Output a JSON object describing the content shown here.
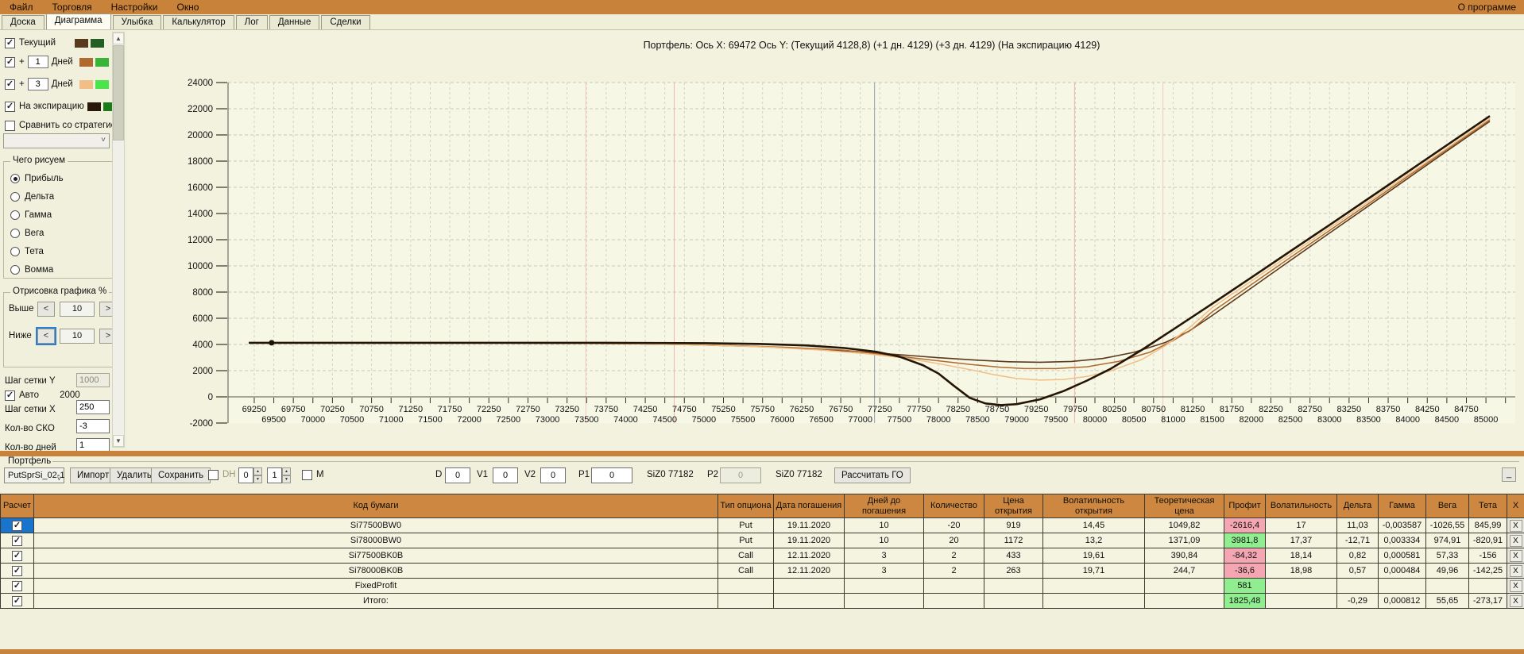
{
  "menu": {
    "items": [
      "Файл",
      "Торговля",
      "Настройки",
      "Окно"
    ],
    "right": "О программе"
  },
  "tabs": {
    "items": [
      "Доска",
      "Диаграмма",
      "Улыбка",
      "Калькулятор",
      "Лог",
      "Данные",
      "Сделки"
    ],
    "active": "Диаграмма"
  },
  "sidebar": {
    "curves": [
      {
        "label": "Текущий",
        "checked": true,
        "colors": [
          "#5a3a1c",
          "#235f23"
        ]
      },
      {
        "label": "Дней",
        "prefix": "+",
        "days": "1",
        "checked": true,
        "colors": [
          "#b06a2e",
          "#38b438"
        ]
      },
      {
        "label": "Дней",
        "prefix": "+",
        "days": "3",
        "checked": true,
        "colors": [
          "#f0be86",
          "#4ce44c"
        ]
      },
      {
        "label": "На экспирацию",
        "checked": true,
        "colors": [
          "#2a1808",
          "#1b7b1b"
        ]
      }
    ],
    "compare": {
      "label": "Сравнить со стратегией",
      "checked": false,
      "dropdown_value": ""
    },
    "draw_group": {
      "title": "Чего рисуем",
      "options": [
        "Прибыль",
        "Дельта",
        "Гамма",
        "Вега",
        "Тета",
        "Вомма"
      ],
      "selected": "Прибыль"
    },
    "render_group": {
      "title": "Отрисовка графика %",
      "above_label": "Выше",
      "above_value": "10",
      "below_label": "Ниже",
      "below_value": "10"
    },
    "grid_y_label": "Шаг сетки Y",
    "grid_y_value": "1000",
    "auto_label": "Авто",
    "auto_checked": true,
    "auto_value": "2000",
    "grid_x_label": "Шаг сетки X",
    "grid_x_value": "250",
    "sko_label": "Кол-во СКО",
    "sko_value": "-3",
    "days_label": "Кол-во дней",
    "days_value": "1"
  },
  "chart_data": {
    "type": "line",
    "title": "Портфель: Ось X: 69472 Ось Y:  (Текущий 4128,8)  (+1 дн. 4129)  (+3 дн. 4129)  (На экспирацию 4129)",
    "x_range": [
      68915,
      85375
    ],
    "y_range": [
      -2000,
      24000
    ],
    "y_ticks": [
      24000,
      22000,
      20000,
      18000,
      16000,
      14000,
      12000,
      10000,
      8000,
      6000,
      4000,
      2000,
      0,
      -2000
    ],
    "x_ticks_row1": [
      69250,
      69750,
      70250,
      70750,
      71250,
      71750,
      72250,
      72750,
      73250,
      73750,
      74250,
      74750,
      75250,
      75750,
      76250,
      76750,
      77250,
      77750,
      78250,
      78750,
      79250,
      79750,
      80250,
      80750,
      81250,
      81750,
      82250,
      82750,
      83250,
      83750,
      84250,
      84750
    ],
    "x_ticks_row2": [
      69500,
      70000,
      70500,
      71000,
      71500,
      72000,
      72500,
      73000,
      73500,
      74000,
      74500,
      75000,
      75500,
      76000,
      76500,
      77000,
      77500,
      78000,
      78500,
      79000,
      79500,
      80000,
      80500,
      81000,
      81500,
      82000,
      82500,
      83000,
      83500,
      84000,
      84500,
      85000
    ],
    "x_minor_step": 250,
    "grid": true,
    "legend_position": "sidebar",
    "cursor_point": {
      "x": 69472,
      "y": 4128.8
    },
    "vlines": [
      {
        "x": 73490,
        "color": "#f3c4c4"
      },
      {
        "x": 74620,
        "color": "#f0b4b4"
      },
      {
        "x": 77182,
        "color": "#94a0b4"
      },
      {
        "x": 79740,
        "color": "#f0b4b4"
      },
      {
        "x": 80870,
        "color": "#f3c4c4"
      }
    ],
    "series": [
      {
        "name": "Текущий",
        "color": "#5a3a1c",
        "width": 1.6,
        "points": [
          [
            69180,
            4128.8
          ],
          [
            70500,
            4127
          ],
          [
            71800,
            4120
          ],
          [
            73000,
            4100
          ],
          [
            74000,
            4058
          ],
          [
            74800,
            3985
          ],
          [
            75600,
            3860
          ],
          [
            76300,
            3690
          ],
          [
            76900,
            3480
          ],
          [
            77500,
            3220
          ],
          [
            78000,
            2990
          ],
          [
            78500,
            2800
          ],
          [
            78900,
            2680
          ],
          [
            79300,
            2640
          ],
          [
            79700,
            2700
          ],
          [
            80100,
            2930
          ],
          [
            80500,
            3400
          ],
          [
            80900,
            4150
          ],
          [
            81200,
            5000
          ],
          [
            81500,
            6210
          ],
          [
            82000,
            8310
          ],
          [
            82500,
            10420
          ],
          [
            83000,
            12510
          ],
          [
            83500,
            14590
          ],
          [
            84000,
            16680
          ],
          [
            84500,
            18770
          ],
          [
            85050,
            21040
          ]
        ]
      },
      {
        "name": "+1 Дней",
        "color": "#b06a2e",
        "width": 1.5,
        "points": [
          [
            69180,
            4129
          ],
          [
            70800,
            4126
          ],
          [
            72200,
            4116
          ],
          [
            73400,
            4088
          ],
          [
            74400,
            4030
          ],
          [
            75300,
            3930
          ],
          [
            76100,
            3770
          ],
          [
            76800,
            3560
          ],
          [
            77400,
            3160
          ],
          [
            77900,
            2820
          ],
          [
            78400,
            2480
          ],
          [
            78800,
            2260
          ],
          [
            79100,
            2160
          ],
          [
            79500,
            2160
          ],
          [
            79900,
            2300
          ],
          [
            80300,
            2700
          ],
          [
            80700,
            3400
          ],
          [
            81000,
            4300
          ],
          [
            81250,
            5200
          ],
          [
            81500,
            6490
          ],
          [
            82000,
            8570
          ],
          [
            82500,
            10640
          ],
          [
            83000,
            12700
          ],
          [
            83500,
            14760
          ],
          [
            84000,
            16830
          ],
          [
            84500,
            18900
          ],
          [
            85050,
            21160
          ]
        ]
      },
      {
        "name": "+3 Дней",
        "color": "#f0be86",
        "width": 1.5,
        "points": [
          [
            69180,
            4129
          ],
          [
            71000,
            4127
          ],
          [
            72800,
            4112
          ],
          [
            74000,
            4070
          ],
          [
            75000,
            3960
          ],
          [
            75800,
            3800
          ],
          [
            76500,
            3570
          ],
          [
            77100,
            3280
          ],
          [
            77600,
            2940
          ],
          [
            78000,
            2540
          ],
          [
            78400,
            2080
          ],
          [
            78700,
            1700
          ],
          [
            79000,
            1400
          ],
          [
            79300,
            1280
          ],
          [
            79600,
            1330
          ],
          [
            79900,
            1560
          ],
          [
            80200,
            1980
          ],
          [
            80600,
            2850
          ],
          [
            80900,
            3900
          ],
          [
            81200,
            5250
          ],
          [
            81500,
            6810
          ],
          [
            82000,
            8840
          ],
          [
            82500,
            10870
          ],
          [
            83000,
            12890
          ],
          [
            83500,
            14920
          ],
          [
            84000,
            16950
          ],
          [
            84500,
            18990
          ],
          [
            85050,
            21260
          ]
        ]
      },
      {
        "name": "На экспирацию",
        "color": "#241505",
        "width": 2.6,
        "points": [
          [
            69180,
            4129
          ],
          [
            72500,
            4129
          ],
          [
            74000,
            4121
          ],
          [
            75000,
            4096
          ],
          [
            75700,
            4042
          ],
          [
            76300,
            3925
          ],
          [
            76800,
            3730
          ],
          [
            77200,
            3440
          ],
          [
            77500,
            3070
          ],
          [
            77800,
            2420
          ],
          [
            78000,
            1780
          ],
          [
            78200,
            830
          ],
          [
            78400,
            -80
          ],
          [
            78600,
            -500
          ],
          [
            78800,
            -630
          ],
          [
            79000,
            -560
          ],
          [
            79300,
            -190
          ],
          [
            79600,
            440
          ],
          [
            79900,
            1240
          ],
          [
            80200,
            2140
          ],
          [
            80600,
            3580
          ],
          [
            81000,
            5140
          ],
          [
            81500,
            7110
          ],
          [
            82000,
            9110
          ],
          [
            82500,
            11120
          ],
          [
            83000,
            13130
          ],
          [
            83500,
            15150
          ],
          [
            84000,
            17180
          ],
          [
            84500,
            19220
          ],
          [
            85050,
            21440
          ]
        ]
      }
    ]
  },
  "portfolio": {
    "group_label": "Портфель",
    "preset": "PutSprSi_02-1",
    "buttons": {
      "import": "Импорт",
      "delete": "Удалить",
      "save": "Сохранить",
      "calc_go": "Рассчитать ГО",
      "minimize": "_"
    },
    "dh_label": "DH",
    "dh_checked": false,
    "spin1": "0",
    "spin2": "1",
    "m_label": "M",
    "m_checked": false,
    "d_label": "D",
    "d_value": "0",
    "v1_label": "V1",
    "v1_value": "0",
    "v2_label": "V2",
    "v2_value": "0",
    "p1_label": "P1",
    "p1_value": "0",
    "p1_instrument": "SiZ0 77182",
    "p2_label": "P2",
    "p2_value": "0",
    "p2_instrument": "SiZ0 77182"
  },
  "portfolio_table": {
    "columns": [
      "Расчет",
      "Код бумаги",
      "Тип опциона",
      "Дата погашения",
      "Дней до погашения",
      "Количество",
      "Цена открытия",
      "Волатильность открытия",
      "Теоретическая цена",
      "Профит",
      "Волатильность",
      "Дельта",
      "Гамма",
      "Вега",
      "Тета",
      "X"
    ],
    "row_action": "X",
    "rows": [
      {
        "selected": true,
        "checked": true,
        "profit_style": "loss",
        "cells": [
          "Si77500BW0",
          "Put",
          "19.11.2020",
          "10",
          "-20",
          "919",
          "14,45",
          "1049,82",
          "-2616,4",
          "17",
          "11,03",
          "-0,003587",
          "-1026,55",
          "845,99"
        ]
      },
      {
        "selected": false,
        "checked": true,
        "profit_style": "gain",
        "cells": [
          "Si78000BW0",
          "Put",
          "19.11.2020",
          "10",
          "20",
          "1172",
          "13,2",
          "1371,09",
          "3981,8",
          "17,37",
          "-12,71",
          "0,003334",
          "974,91",
          "-820,91"
        ]
      },
      {
        "selected": false,
        "checked": true,
        "profit_style": "loss",
        "cells": [
          "Si77500BK0B",
          "Call",
          "12.11.2020",
          "3",
          "2",
          "433",
          "19,61",
          "390,84",
          "-84,32",
          "18,14",
          "0,82",
          "0,000581",
          "57,33",
          "-156"
        ]
      },
      {
        "selected": false,
        "checked": true,
        "profit_style": "loss",
        "cells": [
          "Si78000BK0B",
          "Call",
          "12.11.2020",
          "3",
          "2",
          "263",
          "19,71",
          "244,7",
          "-36,6",
          "18,98",
          "0,57",
          "0,000484",
          "49,96",
          "-142,25"
        ]
      },
      {
        "selected": false,
        "checked": true,
        "profit_style": "gain",
        "cells": [
          "FixedProfit",
          "",
          "",
          "",
          "",
          "",
          "",
          "",
          "581",
          "",
          "",
          "",
          "",
          ""
        ]
      },
      {
        "selected": false,
        "checked": true,
        "profit_style": "gain",
        "cells": [
          "Итого:",
          "",
          "",
          "",
          "",
          "",
          "",
          "",
          "1825,48",
          "",
          "-0,29",
          "0,000812",
          "55,65",
          "-273,17"
        ]
      }
    ]
  },
  "colors": {
    "chrome": "#c9823a",
    "header": "#cd8740",
    "selection": "#1874cd",
    "gain": "#90ee90",
    "loss": "#f4a7b2"
  }
}
